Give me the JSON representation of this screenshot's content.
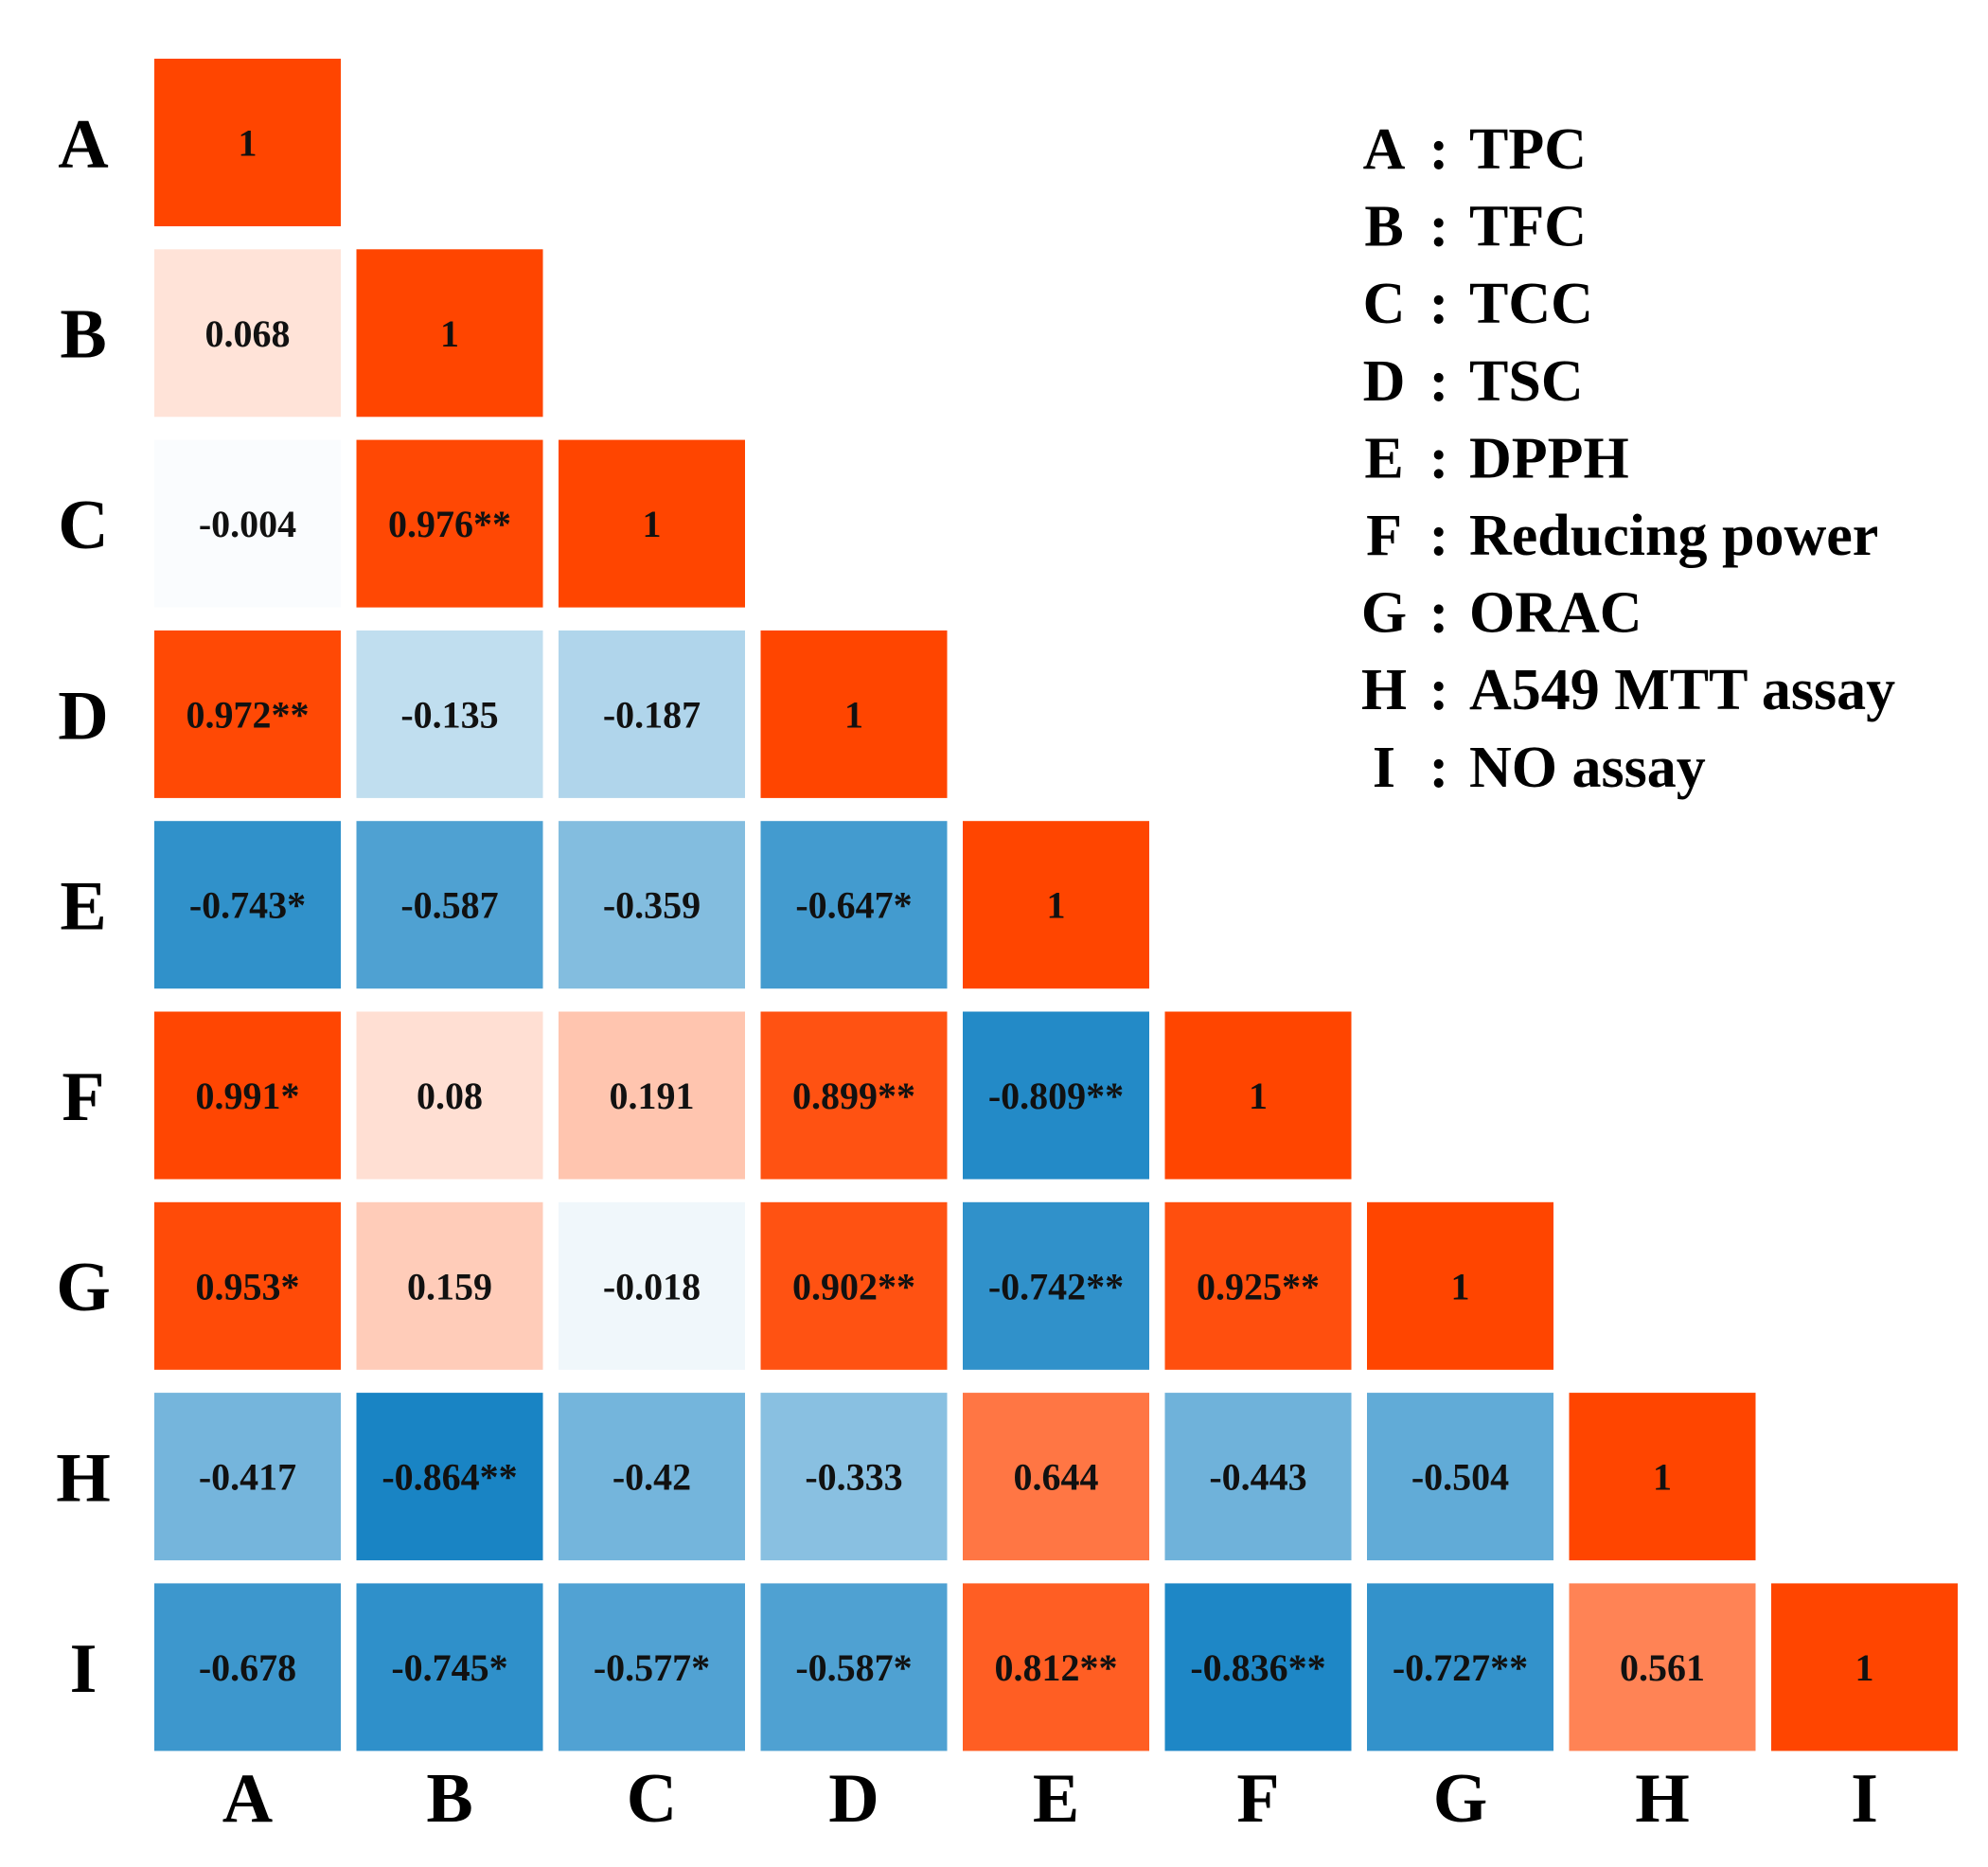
{
  "chart_data": {
    "type": "heatmap",
    "title": "",
    "variables": [
      "A",
      "B",
      "C",
      "D",
      "E",
      "F",
      "G",
      "H",
      "I"
    ],
    "x_tick_labels": [
      "A",
      "B",
      "C",
      "D",
      "E",
      "F",
      "G",
      "H",
      "I"
    ],
    "y_tick_labels": [
      "A",
      "B",
      "C",
      "D",
      "E",
      "F",
      "G",
      "H",
      "I"
    ],
    "value_range": [
      -1,
      1
    ],
    "colors": {
      "positive": "#FF4500",
      "negative": "#0077BE",
      "neutral": "#FFFFFF",
      "text": "#111111"
    },
    "cells": [
      [
        {
          "value": 1,
          "label": "1"
        }
      ],
      [
        {
          "value": 0.068,
          "label": "0.068"
        },
        {
          "value": 1,
          "label": "1"
        }
      ],
      [
        {
          "value": -0.004,
          "label": "-0.004"
        },
        {
          "value": 0.976,
          "label": "0.976**"
        },
        {
          "value": 1,
          "label": "1"
        }
      ],
      [
        {
          "value": 0.972,
          "label": "0.972**"
        },
        {
          "value": -0.135,
          "label": "-0.135"
        },
        {
          "value": -0.187,
          "label": "-0.187"
        },
        {
          "value": 1,
          "label": "1"
        }
      ],
      [
        {
          "value": -0.743,
          "label": "-0.743*"
        },
        {
          "value": -0.587,
          "label": "-0.587"
        },
        {
          "value": -0.359,
          "label": "-0.359"
        },
        {
          "value": -0.647,
          "label": "-0.647*"
        },
        {
          "value": 1,
          "label": "1"
        }
      ],
      [
        {
          "value": 0.991,
          "label": "0.991*"
        },
        {
          "value": 0.08,
          "label": "0.08"
        },
        {
          "value": 0.191,
          "label": "0.191"
        },
        {
          "value": 0.899,
          "label": "0.899**"
        },
        {
          "value": -0.809,
          "label": "-0.809**"
        },
        {
          "value": 1,
          "label": "1"
        }
      ],
      [
        {
          "value": 0.953,
          "label": "0.953*"
        },
        {
          "value": 0.159,
          "label": "0.159"
        },
        {
          "value": -0.018,
          "label": "-0.018"
        },
        {
          "value": 0.902,
          "label": "0.902**"
        },
        {
          "value": -0.742,
          "label": "-0.742**"
        },
        {
          "value": 0.925,
          "label": "0.925**"
        },
        {
          "value": 1,
          "label": "1"
        }
      ],
      [
        {
          "value": -0.417,
          "label": "-0.417"
        },
        {
          "value": -0.864,
          "label": "-0.864**"
        },
        {
          "value": -0.42,
          "label": "-0.42"
        },
        {
          "value": -0.333,
          "label": "-0.333"
        },
        {
          "value": 0.644,
          "label": "0.644"
        },
        {
          "value": -0.443,
          "label": "-0.443"
        },
        {
          "value": -0.504,
          "label": "-0.504"
        },
        {
          "value": 1,
          "label": "1"
        }
      ],
      [
        {
          "value": -0.678,
          "label": "-0.678"
        },
        {
          "value": -0.745,
          "label": "-0.745*"
        },
        {
          "value": -0.577,
          "label": "-0.577*"
        },
        {
          "value": -0.587,
          "label": "-0.587*"
        },
        {
          "value": 0.812,
          "label": "0.812**"
        },
        {
          "value": -0.836,
          "label": "-0.836**"
        },
        {
          "value": -0.727,
          "label": "-0.727**"
        },
        {
          "value": 0.561,
          "label": "0.561"
        },
        {
          "value": 1,
          "label": "1"
        }
      ]
    ],
    "legend": [
      {
        "key": "A",
        "separator": ":",
        "name": "TPC"
      },
      {
        "key": "B",
        "separator": ":",
        "name": "TFC"
      },
      {
        "key": "C",
        "separator": ":",
        "name": "TCC"
      },
      {
        "key": "D",
        "separator": ":",
        "name": "TSC"
      },
      {
        "key": "E",
        "separator": ":",
        "name": "DPPH"
      },
      {
        "key": "F",
        "separator": ":",
        "name": "Reducing power"
      },
      {
        "key": "G",
        "separator": ":",
        "name": "ORAC"
      },
      {
        "key": "H",
        "separator": ":",
        "name": "A549 MTT assay"
      },
      {
        "key": "I",
        "separator": ":",
        "name": "NO assay"
      }
    ],
    "legend_placement": "top-right"
  }
}
